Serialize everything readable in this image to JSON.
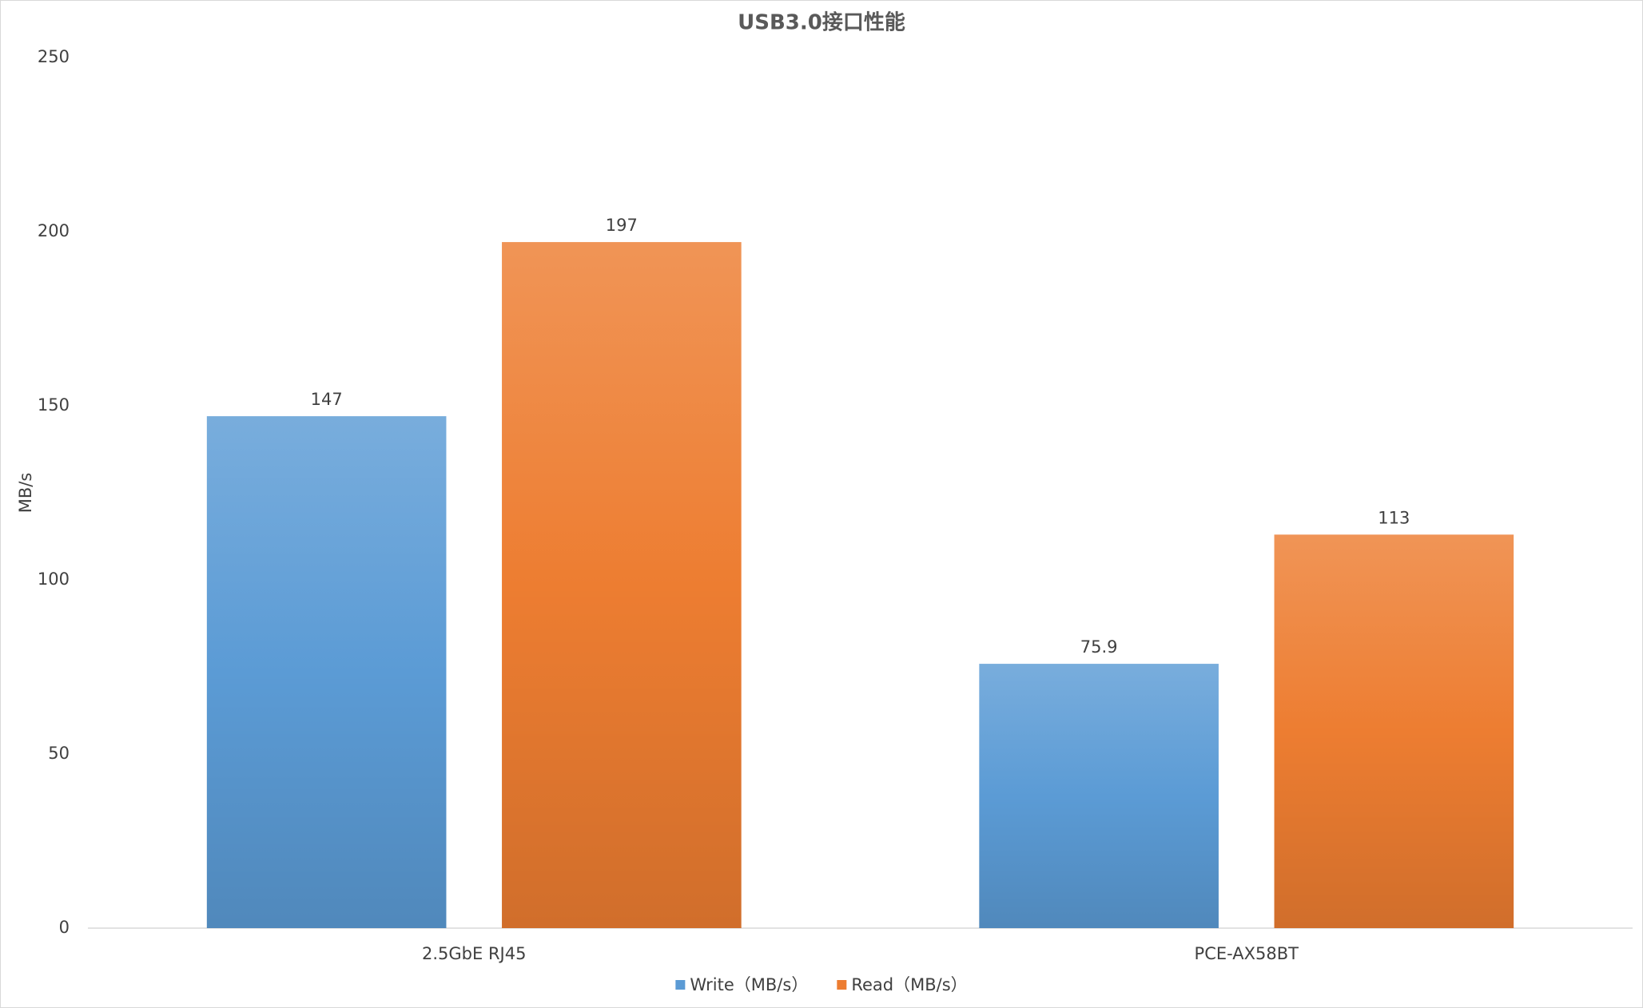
{
  "chart_data": {
    "type": "bar",
    "title": "USB3.0接口性能",
    "y_label": "MB/s",
    "categories": [
      "2.5GbE RJ45",
      "PCE-AX58BT"
    ],
    "series": [
      {
        "name": "Write（MB/s）",
        "color": "#5b9bd5",
        "values": [
          147,
          75.9
        ]
      },
      {
        "name": "Read（MB/s）",
        "color": "#ed7d31",
        "values": [
          197,
          113
        ]
      }
    ],
    "ylim": [
      0,
      250
    ],
    "yticks": [
      0,
      50,
      100,
      150,
      200,
      250
    ],
    "grid": false,
    "legend": "bottom"
  }
}
